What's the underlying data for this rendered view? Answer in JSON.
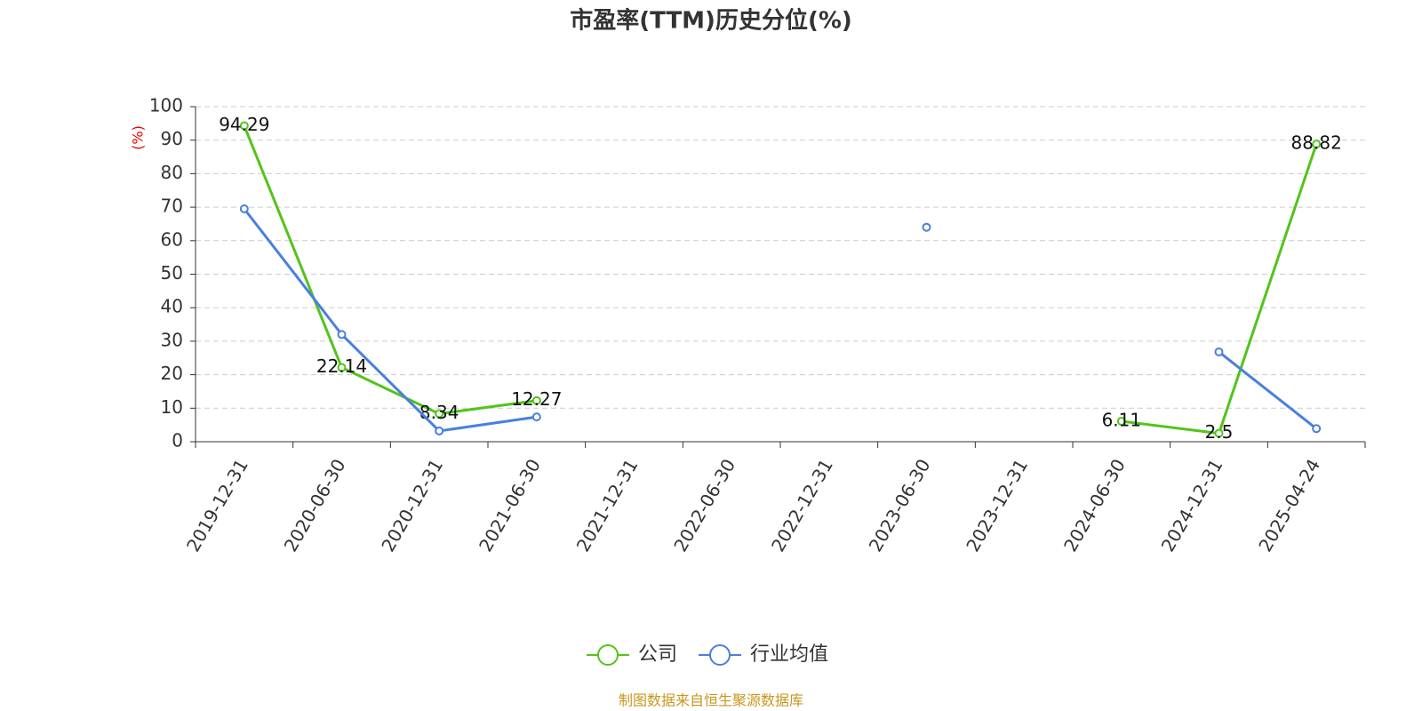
{
  "chart_data": {
    "type": "line",
    "title": "市盈率(TTM)历史分位(%)",
    "y_label": "(%)",
    "categories": [
      "2019-12-31",
      "2020-06-30",
      "2020-12-31",
      "2021-06-30",
      "2021-12-31",
      "2022-06-30",
      "2022-12-31",
      "2023-06-30",
      "2023-12-31",
      "2024-06-30",
      "2024-12-31",
      "2025-04-24"
    ],
    "series": [
      {
        "name": "公司",
        "color": "#52c41a",
        "values": [
          94.29,
          22.14,
          8.34,
          12.27,
          null,
          null,
          null,
          null,
          null,
          6.11,
          2.5,
          88.82
        ],
        "show_labels": true
      },
      {
        "name": "行业均值",
        "color": "#4a7fde",
        "values": [
          69.5,
          32,
          3.2,
          7.4,
          null,
          null,
          null,
          64,
          null,
          null,
          26.8,
          3.9
        ],
        "show_labels": false
      }
    ],
    "ylim": [
      0,
      100
    ],
    "yticks": [
      0,
      10,
      20,
      30,
      40,
      50,
      60,
      70,
      80,
      90,
      100
    ],
    "grid": true,
    "legend": "bottom",
    "source": "制图数据来自恒生聚源数据库"
  }
}
